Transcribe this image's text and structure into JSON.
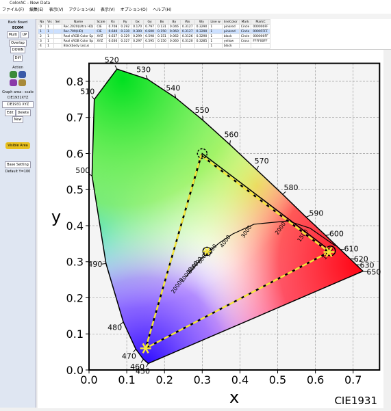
{
  "window": {
    "title": "ColorAC - New Data",
    "menu": [
      "ファイル(F)",
      "編集(E)",
      "表示(V)",
      "アクション(A)",
      "表示(V)",
      "オプション(O)",
      "ヘルプ(H)"
    ]
  },
  "sidebar": {
    "back_board": "Back Board",
    "ecom": "ECOM",
    "buttons": [
      "Multi",
      "UP",
      "Overlap",
      "DOWN",
      "Diff"
    ],
    "action": "Action",
    "graph_area": "Graph area : scale",
    "space": "CIE1931XYZ",
    "space_select": "CIE1931 XYZ",
    "edit_buttons": [
      "Edit",
      "Delete",
      "New"
    ],
    "visible_area": "Visible Area",
    "base_setting": "Base Setting",
    "default": "Default Y=100"
  },
  "table": {
    "header": [
      "No",
      "Vis",
      "Sel",
      "Name",
      "Scale",
      "Rx",
      "Ry",
      "Gx",
      "Gy",
      "Bx",
      "By",
      "Wx",
      "Wy",
      "Line w",
      "lineColor",
      "Mark",
      "MarkC"
    ],
    "rows": [
      [
        "0",
        "1",
        "",
        "Rec.2020(Ultra HD)",
        "CIE",
        "0.708",
        "0.292",
        "0.170",
        "0.797",
        "0.131",
        "0.046",
        "0.3127",
        "0.3290",
        "1",
        "pinkred",
        "Circle",
        "000000FF"
      ],
      [
        "1",
        "1",
        "",
        "Rec.709(HD)",
        "CIE",
        "0.640",
        "0.330",
        "0.300",
        "0.600",
        "0.150",
        "0.060",
        "0.3127",
        "0.3290",
        "1",
        "pinkred",
        "Circle",
        "0000FFFF"
      ],
      [
        "2",
        "1",
        "",
        "Real sRGB Color Sp",
        "XYZ",
        "0.637",
        "0.329",
        "0.299",
        "0.598",
        "0.151",
        "0.062",
        "0.3126",
        "0.3290",
        "1",
        "black",
        "Circle",
        "000000FF"
      ],
      [
        "3",
        "1",
        "",
        "Real sRGB Color Sp",
        "XYZ",
        "0.636",
        "0.327",
        "0.297",
        "0.595",
        "0.150",
        "0.060",
        "0.3120",
        "0.3285",
        "1",
        "yellow",
        "Cross",
        "FFFF00FF"
      ],
      [
        "4",
        "1",
        "",
        "Blackbody Locus",
        "",
        "",
        "",
        "",
        "",
        "",
        "",
        "",
        "",
        "1",
        "black",
        "",
        ""
      ]
    ]
  },
  "chart_data": {
    "type": "chromaticity",
    "x_label": "x",
    "y_label": "y",
    "caption": "CIE1931",
    "xlim": [
      0,
      0.77
    ],
    "ylim": [
      0,
      0.85
    ],
    "xticks": [
      {
        "value": 0,
        "label": "0.0"
      },
      {
        "value": 0.1,
        "label": "0.1"
      },
      {
        "value": 0.2,
        "label": "0.2"
      },
      {
        "value": 0.3,
        "label": "0.3"
      },
      {
        "value": 0.4,
        "label": "0.4"
      },
      {
        "value": 0.5,
        "label": "0.5"
      },
      {
        "value": 0.6,
        "label": "0.6"
      },
      {
        "value": 0.7,
        "label": "0.7"
      }
    ],
    "yticks": [
      {
        "value": 0,
        "label": "0.0"
      },
      {
        "value": 0.1,
        "label": "0.1"
      },
      {
        "value": 0.2,
        "label": "0.2"
      },
      {
        "value": 0.3,
        "label": "0.3"
      },
      {
        "value": 0.4,
        "label": "0.4"
      },
      {
        "value": 0.5,
        "label": "0.5"
      },
      {
        "value": 0.6,
        "label": "0.6"
      },
      {
        "value": 0.7,
        "label": "0.7"
      },
      {
        "value": 0.8,
        "label": "0.8"
      }
    ],
    "grid": true,
    "locus": {
      "labels": [
        "450",
        "460",
        "470",
        "480",
        "490",
        "500",
        "510",
        "520",
        "530",
        "540",
        "550",
        "560",
        "570",
        "580",
        "590",
        "600",
        "610",
        "620",
        "630",
        "650"
      ],
      "x": [
        0.157,
        0.144,
        0.124,
        0.091,
        0.045,
        0.008,
        0.014,
        0.074,
        0.155,
        0.23,
        0.302,
        0.373,
        0.444,
        0.513,
        0.575,
        0.627,
        0.666,
        0.692,
        0.708,
        0.726
      ],
      "y": [
        0.018,
        0.03,
        0.058,
        0.133,
        0.295,
        0.538,
        0.75,
        0.834,
        0.806,
        0.754,
        0.692,
        0.625,
        0.555,
        0.487,
        0.424,
        0.373,
        0.334,
        0.308,
        0.292,
        0.274
      ]
    },
    "planck": {
      "labels": [
        "1000",
        "1500",
        "2000",
        "3000",
        "4000",
        "5000",
        "6000",
        "7000",
        "8000",
        "10000",
        "20000"
      ],
      "x": [
        0.653,
        0.586,
        0.527,
        0.437,
        0.381,
        0.345,
        0.322,
        0.306,
        0.295,
        0.281,
        0.257
      ],
      "y": [
        0.344,
        0.393,
        0.413,
        0.404,
        0.377,
        0.352,
        0.332,
        0.317,
        0.305,
        0.288,
        0.258
      ]
    },
    "series": [
      {
        "color": "#000000",
        "dash": false,
        "x": [
          0.64,
          0.3,
          0.15
        ],
        "y": [
          0.33,
          0.6,
          0.06
        ]
      },
      {
        "color": "#000000",
        "dash": true,
        "x": [
          0.636,
          0.297,
          0.15
        ],
        "y": [
          0.327,
          0.595,
          0.06
        ]
      },
      {
        "color": "#f5e63a",
        "dash": true,
        "x": [
          0.636,
          0.297,
          0.15
        ],
        "y": [
          0.327,
          0.595,
          0.06
        ]
      }
    ],
    "white_point": {
      "x": 0.3127,
      "y": 0.329
    }
  }
}
